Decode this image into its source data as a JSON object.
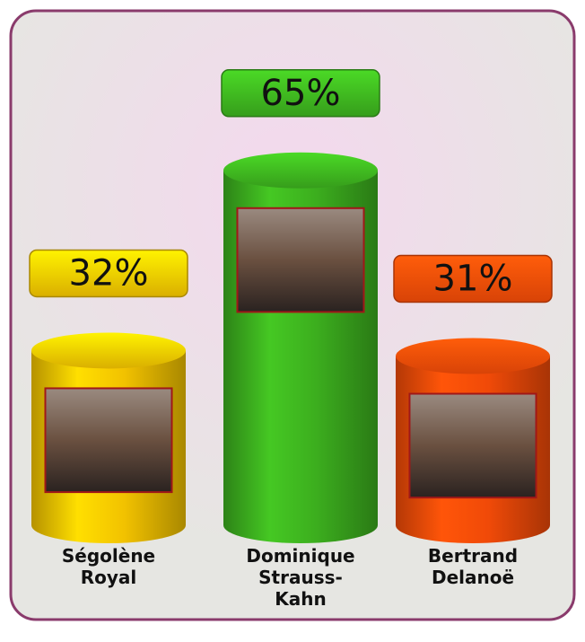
{
  "chart_data": {
    "type": "bar",
    "categories": [
      "Ségolène Royal",
      "Dominique Strauss-Kahn",
      "Bertrand Delanoë"
    ],
    "values": [
      32,
      65,
      31
    ],
    "value_labels": [
      "32%",
      "65%",
      "31%"
    ],
    "colors": [
      "#f2c200",
      "#3cae1e",
      "#f04a08"
    ]
  }
}
